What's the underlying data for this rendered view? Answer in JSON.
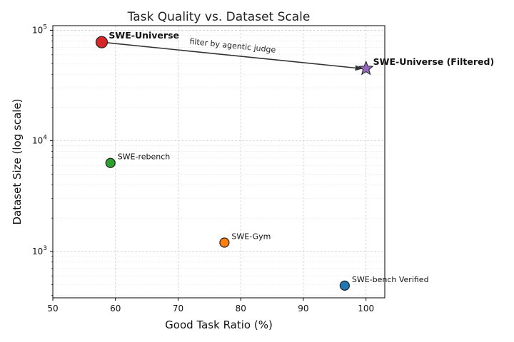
{
  "chart_data": {
    "type": "scatter",
    "title": "Task Quality vs. Dataset Scale",
    "xlabel": "Good Task Ratio (%)",
    "ylabel": "Dataset Size (log scale)",
    "xlim": [
      50,
      103
    ],
    "ylim": [
      380,
      110000
    ],
    "yscale": "log",
    "grid": true,
    "x_ticks": [
      "50",
      "60",
      "70",
      "80",
      "90",
      "100"
    ],
    "y_ticks": [
      {
        "base": "10",
        "exp": "3"
      },
      {
        "base": "10",
        "exp": "4"
      },
      {
        "base": "10",
        "exp": "5"
      }
    ],
    "points": [
      {
        "label": "SWE-Universe",
        "x": 57.8,
        "y": 78000,
        "color": "#d62728",
        "marker": "circle",
        "bold": true
      },
      {
        "label": "SWE-rebench",
        "x": 59.2,
        "y": 6300,
        "color": "#2ca02c",
        "marker": "circle",
        "bold": false
      },
      {
        "label": "SWE-Gym",
        "x": 77.4,
        "y": 1200,
        "color": "#ff7f0e",
        "marker": "circle",
        "bold": false
      },
      {
        "label": "SWE-bench Verified",
        "x": 96.6,
        "y": 490,
        "color": "#1f77b4",
        "marker": "circle",
        "bold": false
      },
      {
        "label": "SWE-Universe (Filtered)",
        "x": 100,
        "y": 45000,
        "color": "#9467bd",
        "marker": "star",
        "bold": true
      }
    ],
    "annotation": {
      "text": "filter by agentic judge",
      "from": [
        57.8,
        78000
      ],
      "to": [
        100,
        45000
      ]
    }
  }
}
